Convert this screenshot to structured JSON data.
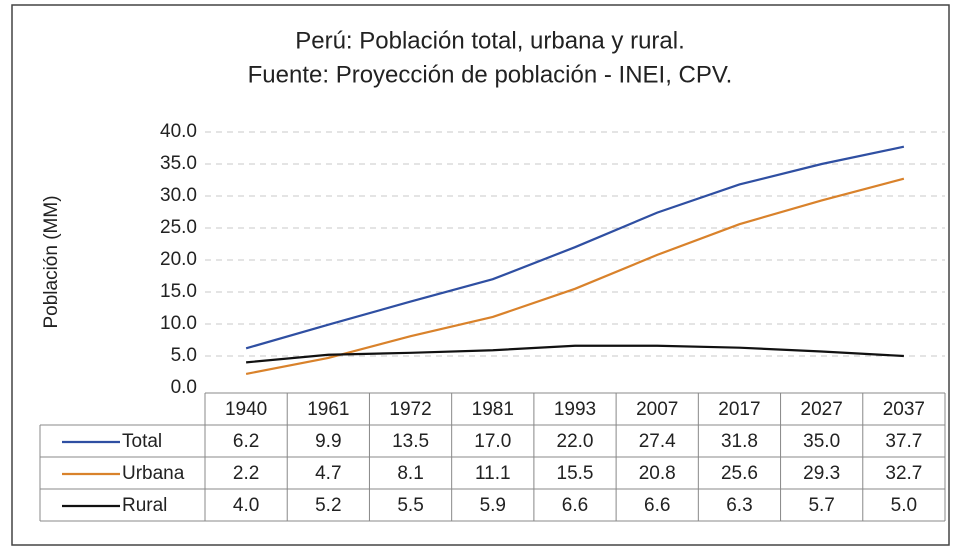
{
  "chart_data": {
    "type": "line",
    "title": "Perú: Población total, urbana y rural.",
    "subtitle": "Fuente: Proyección de población - INEI, CPV.",
    "y_label": "Población (MM)",
    "categories": [
      "1940",
      "1961",
      "1972",
      "1981",
      "1993",
      "2007",
      "2017",
      "2027",
      "2037"
    ],
    "series": [
      {
        "name": "Total",
        "color": "#2f4fa2",
        "values": [
          6.2,
          9.9,
          13.5,
          17.0,
          22.0,
          27.4,
          31.8,
          35.0,
          37.7
        ],
        "value_labels": [
          "6.2",
          "9.9",
          "13.5",
          "17.0",
          "22.0",
          "27.4",
          "31.8",
          "35.0",
          "37.7"
        ]
      },
      {
        "name": "Urbana",
        "color": "#d9822b",
        "values": [
          2.2,
          4.7,
          8.1,
          11.1,
          15.5,
          20.8,
          25.6,
          29.3,
          32.7
        ],
        "value_labels": [
          "2.2",
          "4.7",
          "8.1",
          "11.1",
          "15.5",
          "20.8",
          "25.6",
          "29.3",
          "32.7"
        ]
      },
      {
        "name": "Rural",
        "color": "#111111",
        "values": [
          4.0,
          5.2,
          5.5,
          5.9,
          6.6,
          6.6,
          6.3,
          5.7,
          5.0
        ],
        "value_labels": [
          "4.0",
          "5.2",
          "5.5",
          "5.9",
          "6.6",
          "6.6",
          "6.3",
          "5.7",
          "5.0"
        ]
      }
    ],
    "ylim": [
      0,
      40
    ],
    "yticks": [
      {
        "value": 0,
        "label": "0.0"
      },
      {
        "value": 5,
        "label": "5.0"
      },
      {
        "value": 10,
        "label": "10.0"
      },
      {
        "value": 15,
        "label": "15.0"
      },
      {
        "value": 20,
        "label": "20.0"
      },
      {
        "value": 25,
        "label": "25.0"
      },
      {
        "value": 30,
        "label": "30.0"
      },
      {
        "value": 35,
        "label": "35.0"
      },
      {
        "value": 40,
        "label": "40.0"
      }
    ],
    "grid": true
  }
}
